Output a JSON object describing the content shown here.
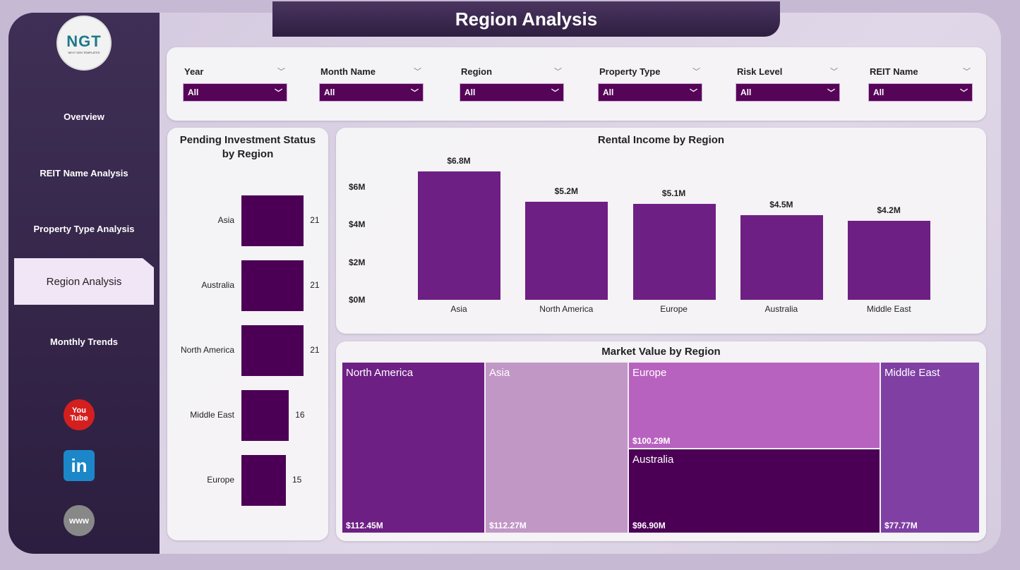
{
  "header": {
    "title": "Region Analysis"
  },
  "logo": {
    "text": "NGT",
    "subtext": "NEXT GEN TEMPLATES"
  },
  "sidebar": {
    "items": [
      {
        "label": "Overview"
      },
      {
        "label": "REIT Name Analysis"
      },
      {
        "label": "Property Type Analysis"
      },
      {
        "label": "Region Analysis",
        "active": true
      },
      {
        "label": "Monthly Trends"
      }
    ],
    "social": [
      {
        "icon": "youtube-icon",
        "label": "You Tube"
      },
      {
        "icon": "linkedin-icon",
        "label": "in"
      },
      {
        "icon": "website-globe-icon",
        "label": "www"
      }
    ]
  },
  "filters": [
    {
      "label": "Year",
      "value": "All"
    },
    {
      "label": "Month Name",
      "value": "All"
    },
    {
      "label": "Region",
      "value": "All"
    },
    {
      "label": "Property Type",
      "value": "All"
    },
    {
      "label": "Risk Level",
      "value": "All"
    },
    {
      "label": "REIT Name",
      "value": "All"
    }
  ],
  "colors": {
    "dark_purple": "#4b0055",
    "bar_purple": "#6e1f84",
    "filter_bg": "#560457"
  },
  "chart_data": [
    {
      "type": "bar",
      "orientation": "horizontal",
      "title": "Pending Investment Status by Region",
      "categories": [
        "Asia",
        "Australia",
        "North America",
        "Middle East",
        "Europe"
      ],
      "values": [
        21,
        21,
        21,
        16,
        15
      ],
      "data_labels": [
        "21",
        "21",
        "21",
        "16",
        "15"
      ],
      "color": "#4b0055"
    },
    {
      "type": "bar",
      "title": "Rental Income by Region",
      "categories": [
        "Asia",
        "North America",
        "Europe",
        "Australia",
        "Middle East"
      ],
      "values": [
        6.8,
        5.2,
        5.1,
        4.5,
        4.2
      ],
      "data_labels": [
        "$6.8M",
        "$5.2M",
        "$5.1M",
        "$4.5M",
        "$4.2M"
      ],
      "yticks": [
        "$0M",
        "$2M",
        "$4M",
        "$6M"
      ],
      "ytick_values": [
        0,
        2,
        4,
        6
      ],
      "ylim": [
        0,
        7
      ],
      "color": "#6e1f84"
    },
    {
      "type": "treemap",
      "title": "Market Value by Region",
      "items": [
        {
          "name": "North America",
          "label": "$112.45M",
          "value": 112.45,
          "color": "#6e1f84"
        },
        {
          "name": "Asia",
          "label": "$112.27M",
          "value": 112.27,
          "color": "#c197c6"
        },
        {
          "name": "Europe",
          "label": "$100.29M",
          "value": 100.29,
          "color": "#b862c0"
        },
        {
          "name": "Australia",
          "label": "$96.90M",
          "value": 96.9,
          "color": "#4b0055"
        },
        {
          "name": "Middle East",
          "label": "$77.77M",
          "value": 77.77,
          "color": "#7f3fa3"
        }
      ]
    }
  ]
}
